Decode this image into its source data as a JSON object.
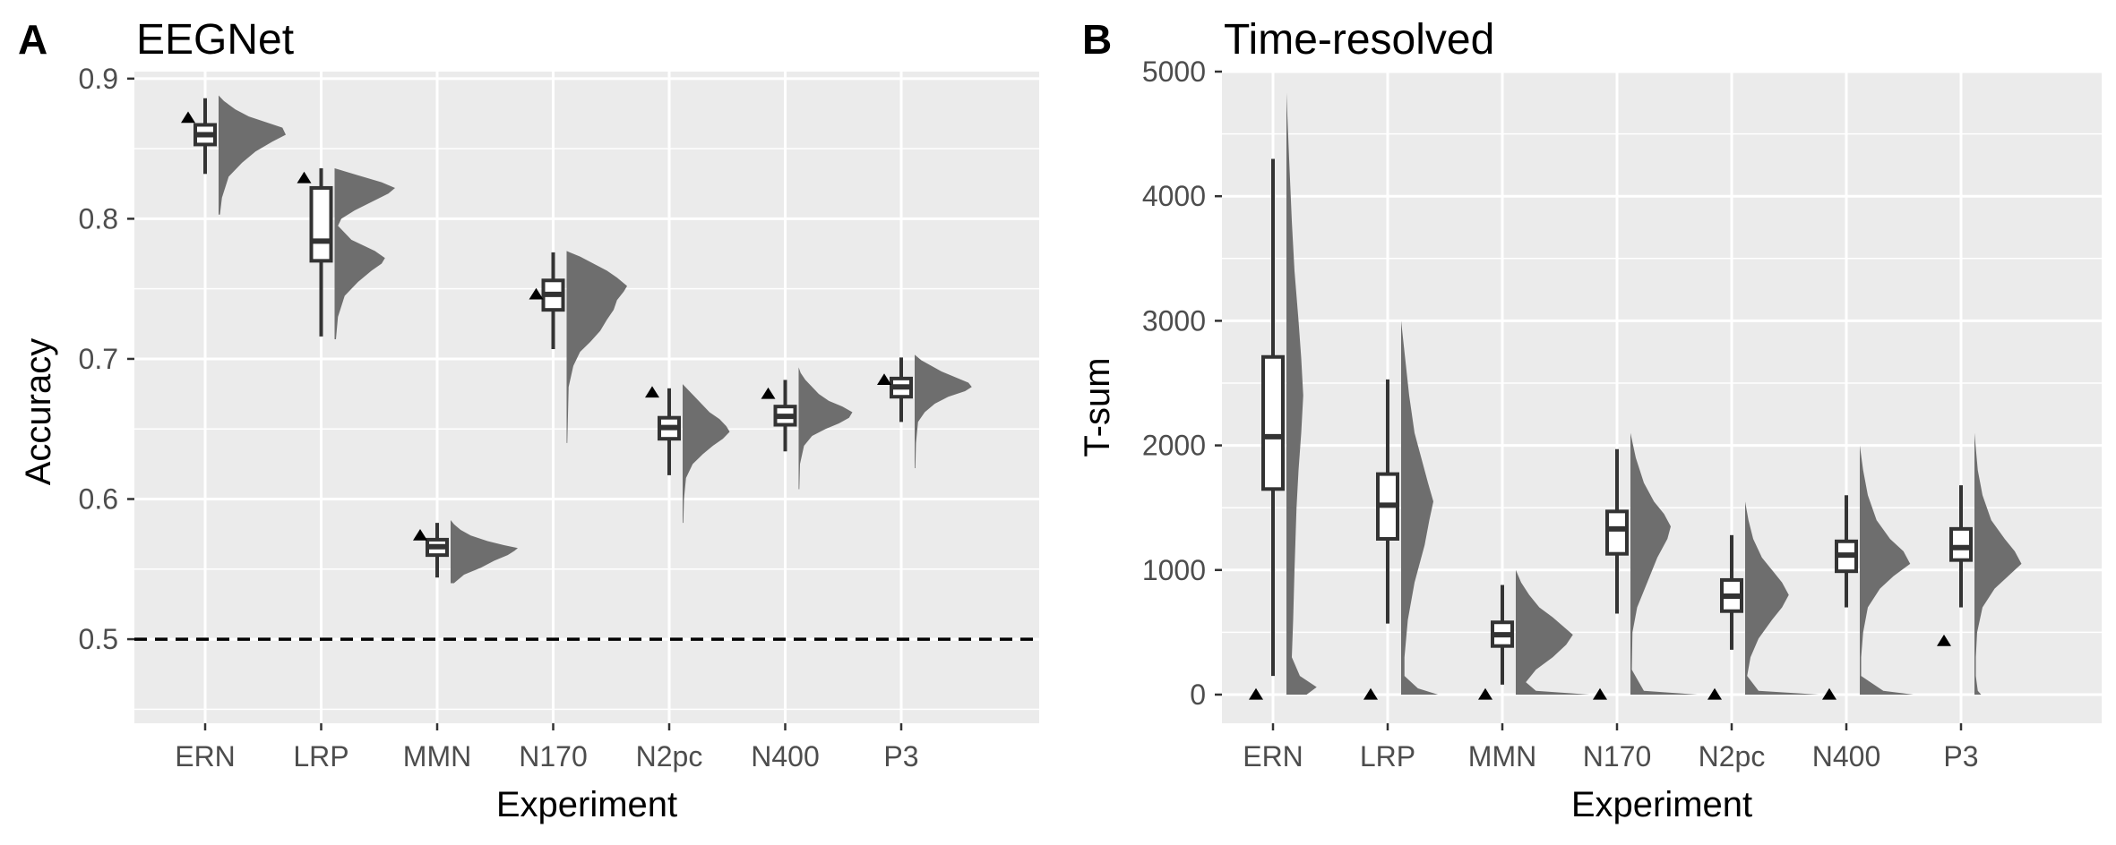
{
  "colors": {
    "panel_background": "#ebebeb",
    "grid": "#ffffff",
    "density_fill": "#6e6e6e",
    "box_fill": "#ffffff",
    "box_stroke": "#333333",
    "marker": "#000000",
    "reference_line": "#000000"
  },
  "chart_data": [
    {
      "type": "boxplot+density",
      "panel_letter": "A",
      "title": "EEGNet",
      "xlabel": "Experiment",
      "ylabel": "Accuracy",
      "categories": [
        "ERN",
        "LRP",
        "MMN",
        "N170",
        "N2pc",
        "N400",
        "P3"
      ],
      "ylim": [
        0.44,
        0.905
      ],
      "yticks": [
        0.5,
        0.6,
        0.7,
        0.8,
        0.9
      ],
      "ytick_labels": [
        "0.5",
        "0.6",
        "0.7",
        "0.8",
        "0.9"
      ],
      "reference_line": {
        "y": 0.5,
        "style": "dashed"
      },
      "grid": true,
      "boxes": [
        {
          "category": "ERN",
          "whisker_low": 0.832,
          "q1": 0.853,
          "median": 0.86,
          "q3": 0.867,
          "whisker_high": 0.886
        },
        {
          "category": "LRP",
          "whisker_low": 0.716,
          "q1": 0.77,
          "median": 0.784,
          "q3": 0.822,
          "whisker_high": 0.836
        },
        {
          "category": "MMN",
          "whisker_low": 0.544,
          "q1": 0.56,
          "median": 0.566,
          "q3": 0.571,
          "whisker_high": 0.583
        },
        {
          "category": "N170",
          "whisker_low": 0.707,
          "q1": 0.735,
          "median": 0.746,
          "q3": 0.756,
          "whisker_high": 0.776
        },
        {
          "category": "N2pc",
          "whisker_low": 0.617,
          "q1": 0.643,
          "median": 0.651,
          "q3": 0.658,
          "whisker_high": 0.679
        },
        {
          "category": "N400",
          "whisker_low": 0.634,
          "q1": 0.653,
          "median": 0.659,
          "q3": 0.666,
          "whisker_high": 0.685
        },
        {
          "category": "P3",
          "whisker_low": 0.655,
          "q1": 0.673,
          "median": 0.68,
          "q3": 0.686,
          "whisker_high": 0.701
        }
      ],
      "markers": [
        {
          "category": "ERN",
          "y": 0.872
        },
        {
          "category": "LRP",
          "y": 0.829
        },
        {
          "category": "MMN",
          "y": 0.574
        },
        {
          "category": "N170",
          "y": 0.746
        },
        {
          "category": "N2pc",
          "y": 0.676
        },
        {
          "category": "N400",
          "y": 0.675
        },
        {
          "category": "P3",
          "y": 0.685
        }
      ],
      "densities": [
        {
          "category": "ERN",
          "y": [
            0.803,
            0.815,
            0.83,
            0.84,
            0.848,
            0.855,
            0.86,
            0.865,
            0.869,
            0.873,
            0.878,
            0.884,
            0.888
          ],
          "density": [
            0.02,
            0.05,
            0.15,
            0.35,
            0.55,
            0.8,
            1.0,
            0.95,
            0.7,
            0.45,
            0.25,
            0.08,
            0
          ]
        },
        {
          "category": "LRP",
          "y": [
            0.714,
            0.73,
            0.745,
            0.755,
            0.763,
            0.768,
            0.772,
            0.777,
            0.785,
            0.795,
            0.8,
            0.806,
            0.812,
            0.818,
            0.822,
            0.826,
            0.831,
            0.836
          ],
          "density": [
            0.02,
            0.05,
            0.15,
            0.35,
            0.55,
            0.7,
            0.75,
            0.6,
            0.25,
            0.05,
            0.1,
            0.3,
            0.55,
            0.8,
            0.9,
            0.7,
            0.35,
            0
          ]
        },
        {
          "category": "MMN",
          "y": [
            0.54,
            0.546,
            0.551,
            0.556,
            0.56,
            0.563,
            0.565,
            0.567,
            0.57,
            0.574,
            0.578,
            0.582,
            0.585
          ],
          "density": [
            0.05,
            0.2,
            0.45,
            0.65,
            0.85,
            0.95,
            1.0,
            0.8,
            0.55,
            0.3,
            0.15,
            0.05,
            0
          ]
        },
        {
          "category": "N170",
          "y": [
            0.64,
            0.66,
            0.68,
            0.695,
            0.705,
            0.712,
            0.72,
            0.728,
            0.735,
            0.742,
            0.748,
            0.752,
            0.758,
            0.763,
            0.768,
            0.773,
            0.777
          ],
          "density": [
            0.01,
            0.02,
            0.03,
            0.1,
            0.2,
            0.35,
            0.5,
            0.6,
            0.7,
            0.75,
            0.85,
            0.9,
            0.75,
            0.6,
            0.4,
            0.2,
            0
          ]
        },
        {
          "category": "N2pc",
          "y": [
            0.583,
            0.6,
            0.615,
            0.625,
            0.632,
            0.638,
            0.643,
            0.648,
            0.652,
            0.657,
            0.662,
            0.667,
            0.672,
            0.678,
            0.682
          ],
          "density": [
            0.01,
            0.02,
            0.05,
            0.15,
            0.3,
            0.45,
            0.6,
            0.7,
            0.65,
            0.55,
            0.4,
            0.3,
            0.2,
            0.08,
            0
          ]
        },
        {
          "category": "N400",
          "y": [
            0.607,
            0.625,
            0.638,
            0.645,
            0.65,
            0.654,
            0.658,
            0.662,
            0.666,
            0.67,
            0.675,
            0.68,
            0.685,
            0.69,
            0.694
          ],
          "density": [
            0.01,
            0.02,
            0.08,
            0.2,
            0.4,
            0.6,
            0.75,
            0.8,
            0.65,
            0.45,
            0.3,
            0.2,
            0.1,
            0.03,
            0
          ]
        },
        {
          "category": "P3",
          "y": [
            0.622,
            0.64,
            0.655,
            0.662,
            0.668,
            0.673,
            0.677,
            0.68,
            0.683,
            0.687,
            0.691,
            0.695,
            0.699,
            0.703
          ],
          "density": [
            0.01,
            0.02,
            0.05,
            0.15,
            0.3,
            0.5,
            0.75,
            0.85,
            0.8,
            0.6,
            0.4,
            0.25,
            0.1,
            0
          ]
        }
      ]
    },
    {
      "type": "boxplot+density",
      "panel_letter": "B",
      "title": "Time-resolved",
      "xlabel": "Experiment",
      "ylabel": "T-sum",
      "categories": [
        "ERN",
        "LRP",
        "MMN",
        "N170",
        "N2pc",
        "N400",
        "P3"
      ],
      "ylim": [
        -230,
        5000
      ],
      "yticks": [
        0,
        1000,
        2000,
        3000,
        4000,
        5000
      ],
      "ytick_labels": [
        "0",
        "1000",
        "2000",
        "3000",
        "4000",
        "5000"
      ],
      "grid": true,
      "boxes": [
        {
          "category": "ERN",
          "whisker_low": 150,
          "q1": 1650,
          "median": 2070,
          "q3": 2710,
          "whisker_high": 4300
        },
        {
          "category": "LRP",
          "whisker_low": 570,
          "q1": 1250,
          "median": 1520,
          "q3": 1770,
          "whisker_high": 2530
        },
        {
          "category": "MMN",
          "whisker_low": 80,
          "q1": 390,
          "median": 480,
          "q3": 580,
          "whisker_high": 880
        },
        {
          "category": "N170",
          "whisker_low": 650,
          "q1": 1130,
          "median": 1330,
          "q3": 1470,
          "whisker_high": 1970
        },
        {
          "category": "N2pc",
          "whisker_low": 360,
          "q1": 670,
          "median": 790,
          "q3": 920,
          "whisker_high": 1280
        },
        {
          "category": "N400",
          "whisker_low": 700,
          "q1": 990,
          "median": 1120,
          "q3": 1230,
          "whisker_high": 1600
        },
        {
          "category": "P3",
          "whisker_low": 700,
          "q1": 1080,
          "median": 1180,
          "q3": 1330,
          "whisker_high": 1680
        }
      ],
      "markers": [
        {
          "category": "ERN",
          "y": 0
        },
        {
          "category": "LRP",
          "y": 0
        },
        {
          "category": "MMN",
          "y": 0
        },
        {
          "category": "N170",
          "y": 0
        },
        {
          "category": "N2pc",
          "y": 0
        },
        {
          "category": "N400",
          "y": 0
        },
        {
          "category": "P3",
          "y": 430
        }
      ],
      "densities": [
        {
          "category": "ERN",
          "y": [
            0,
            60,
            150,
            300,
            600,
            1000,
            1500,
            1800,
            2100,
            2400,
            2700,
            3000,
            3400,
            3800,
            4300,
            4830
          ],
          "density": [
            0.3,
            0.45,
            0.2,
            0.08,
            0.1,
            0.12,
            0.15,
            0.18,
            0.22,
            0.25,
            0.22,
            0.18,
            0.12,
            0.08,
            0.04,
            0
          ]
        },
        {
          "category": "LRP",
          "y": [
            0,
            50,
            150,
            300,
            600,
            900,
            1200,
            1400,
            1550,
            1700,
            1900,
            2100,
            2400,
            2700,
            3000
          ],
          "density": [
            0.55,
            0.25,
            0.05,
            0.05,
            0.1,
            0.2,
            0.35,
            0.42,
            0.48,
            0.4,
            0.3,
            0.2,
            0.12,
            0.06,
            0
          ]
        },
        {
          "category": "MMN",
          "y": [
            0,
            30,
            100,
            200,
            300,
            400,
            480,
            550,
            620,
            700,
            800,
            900,
            1000
          ],
          "density": [
            1.1,
            0.3,
            0.15,
            0.3,
            0.55,
            0.75,
            0.85,
            0.7,
            0.55,
            0.35,
            0.2,
            0.08,
            0
          ]
        },
        {
          "category": "N170",
          "y": [
            0,
            30,
            200,
            500,
            700,
            900,
            1100,
            1250,
            1350,
            1450,
            1550,
            1700,
            1900,
            2100
          ],
          "density": [
            1.0,
            0.2,
            0.02,
            0.03,
            0.1,
            0.25,
            0.4,
            0.55,
            0.6,
            0.5,
            0.35,
            0.2,
            0.08,
            0
          ]
        },
        {
          "category": "N2pc",
          "y": [
            0,
            30,
            150,
            300,
            450,
            600,
            700,
            800,
            900,
            1000,
            1100,
            1250,
            1400,
            1550
          ],
          "density": [
            1.1,
            0.2,
            0.03,
            0.08,
            0.2,
            0.4,
            0.55,
            0.65,
            0.55,
            0.4,
            0.25,
            0.12,
            0.05,
            0
          ]
        },
        {
          "category": "N400",
          "y": [
            0,
            30,
            150,
            300,
            500,
            700,
            850,
            950,
            1050,
            1150,
            1250,
            1400,
            1600,
            1800,
            2000
          ],
          "density": [
            0.8,
            0.35,
            0.02,
            0.02,
            0.05,
            0.12,
            0.3,
            0.5,
            0.75,
            0.65,
            0.45,
            0.25,
            0.12,
            0.05,
            0
          ]
        },
        {
          "category": "P3",
          "y": [
            0,
            30,
            150,
            300,
            500,
            700,
            850,
            950,
            1050,
            1150,
            1250,
            1400,
            1600,
            1800,
            2100
          ],
          "density": [
            0.1,
            0.05,
            0.02,
            0.02,
            0.04,
            0.12,
            0.3,
            0.5,
            0.7,
            0.6,
            0.45,
            0.25,
            0.12,
            0.05,
            0
          ]
        }
      ]
    }
  ]
}
